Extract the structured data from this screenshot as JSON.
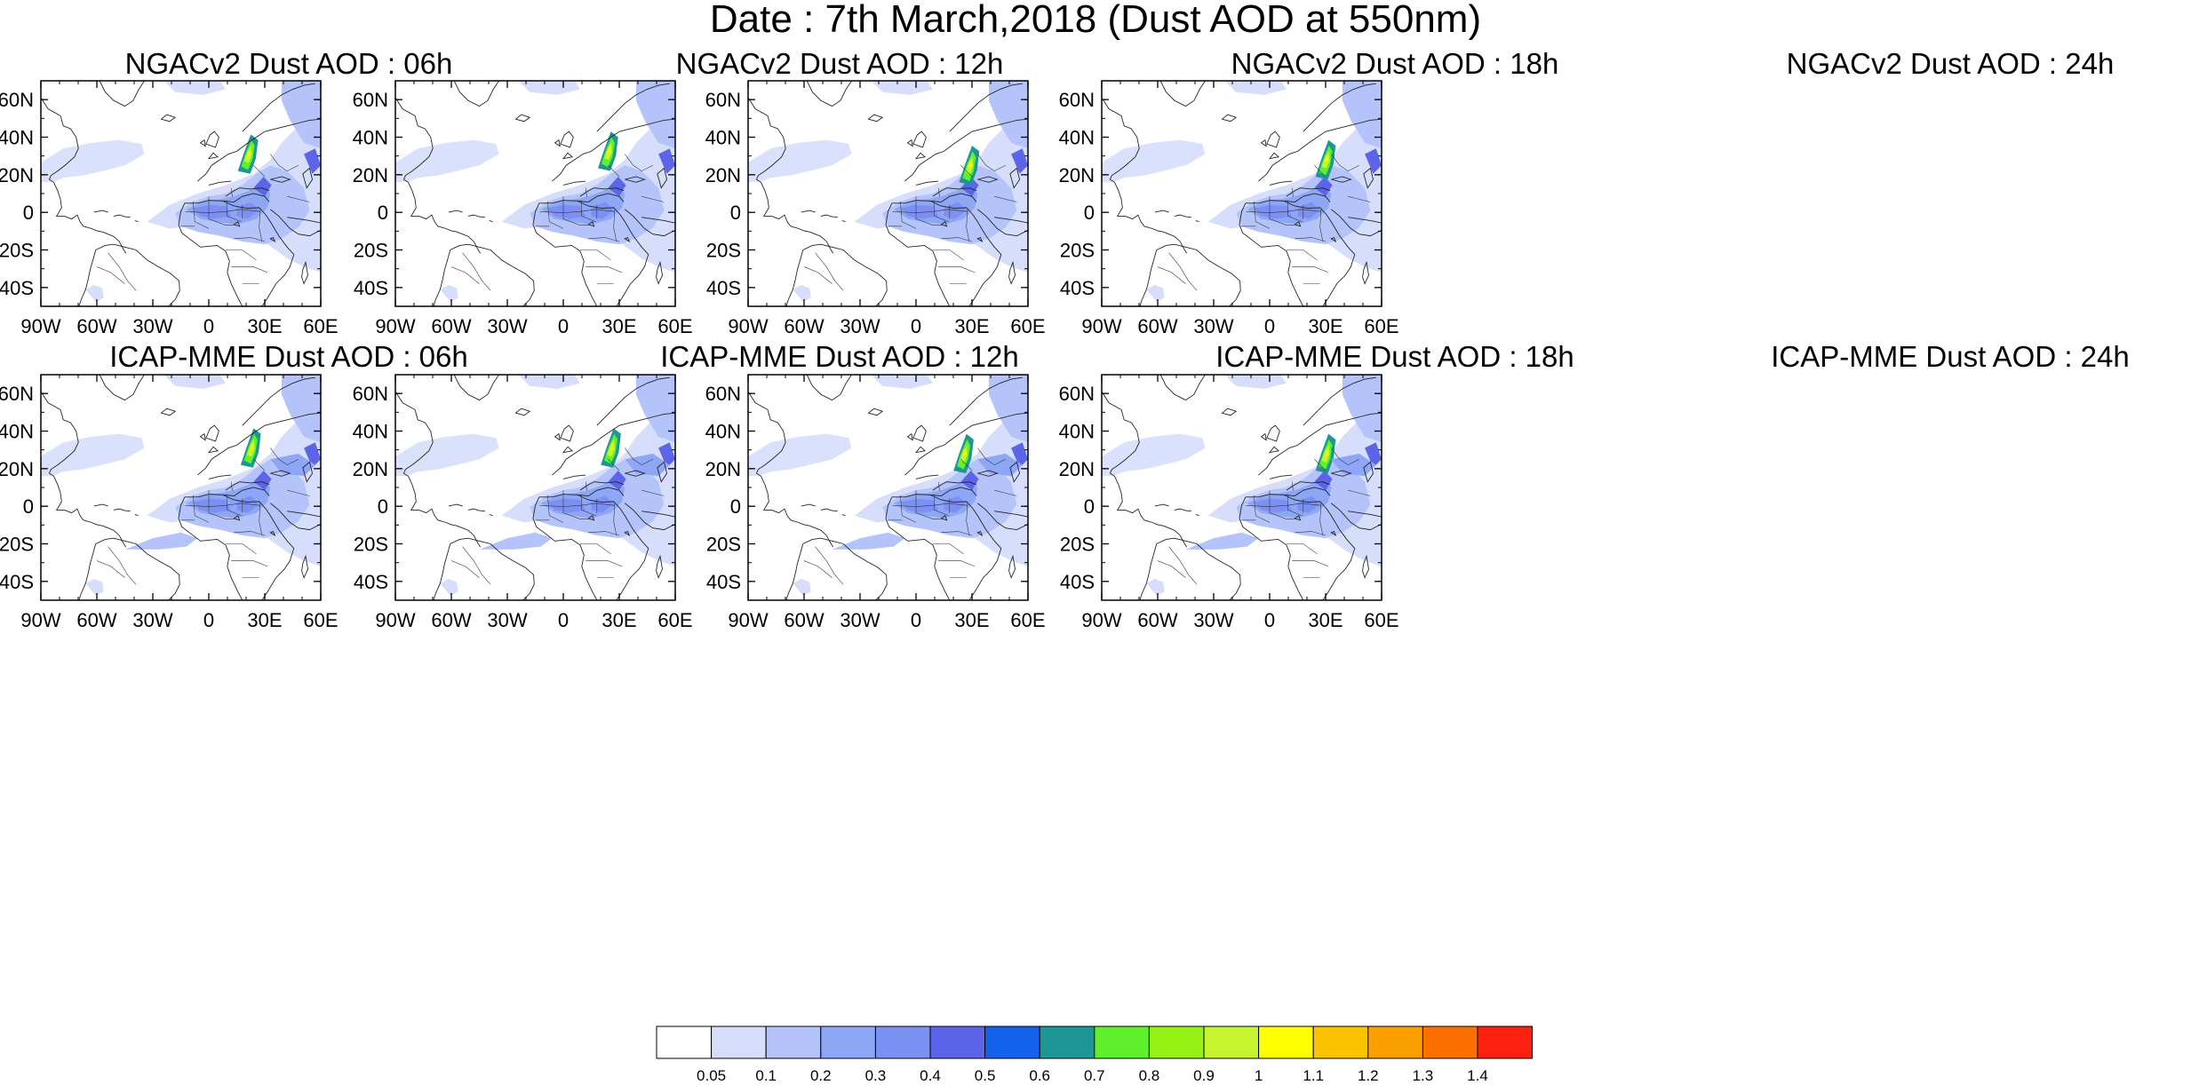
{
  "title": "Date : 7th March,2018 (Dust AOD at 550nm)",
  "panels": [
    {
      "title": "NGACv2 Dust AOD : 06h",
      "model": "NGACv2",
      "hour": "06h"
    },
    {
      "title": "NGACv2 Dust AOD : 12h",
      "model": "NGACv2",
      "hour": "12h"
    },
    {
      "title": "NGACv2 Dust AOD : 18h",
      "model": "NGACv2",
      "hour": "18h"
    },
    {
      "title": "NGACv2 Dust AOD : 24h",
      "model": "NGACv2",
      "hour": "24h"
    },
    {
      "title": "ICAP-MME Dust AOD : 06h",
      "model": "ICAP-MME",
      "hour": "06h"
    },
    {
      "title": "ICAP-MME Dust AOD : 12h",
      "model": "ICAP-MME",
      "hour": "12h"
    },
    {
      "title": "ICAP-MME Dust AOD : 18h",
      "model": "ICAP-MME",
      "hour": "18h"
    },
    {
      "title": "ICAP-MME Dust AOD : 24h",
      "model": "ICAP-MME",
      "hour": "24h"
    }
  ],
  "map_extent": {
    "lon": [
      -90,
      60
    ],
    "lat": [
      -50,
      70
    ]
  },
  "lon_ticks": [
    {
      "value": -90,
      "label": "90W"
    },
    {
      "value": -60,
      "label": "60W"
    },
    {
      "value": -30,
      "label": "30W"
    },
    {
      "value": 0,
      "label": "0"
    },
    {
      "value": 30,
      "label": "30E"
    },
    {
      "value": 60,
      "label": "60E"
    }
  ],
  "lat_ticks": [
    {
      "value": 60,
      "label": "60N"
    },
    {
      "value": 40,
      "label": "40N"
    },
    {
      "value": 20,
      "label": "20N"
    },
    {
      "value": 0,
      "label": "0"
    },
    {
      "value": -20,
      "label": "20S"
    },
    {
      "value": -40,
      "label": "40S"
    }
  ],
  "colorbar": {
    "colors": [
      "#ffffff",
      "#d6defc",
      "#b4c4fa",
      "#8ea6f6",
      "#7c90f4",
      "#5c64ea",
      "#1462ec",
      "#1e9696",
      "#5ef02a",
      "#96f214",
      "#c6f530",
      "#ffff00",
      "#fcc400",
      "#fca000",
      "#fc7000",
      "#fc2010"
    ],
    "labels": [
      "0.05",
      "0.1",
      "0.2",
      "0.3",
      "0.4",
      "0.5",
      "0.6",
      "0.7",
      "0.8",
      "0.9",
      "1",
      "1.1",
      "1.2",
      "1.3",
      "1.4"
    ]
  }
}
